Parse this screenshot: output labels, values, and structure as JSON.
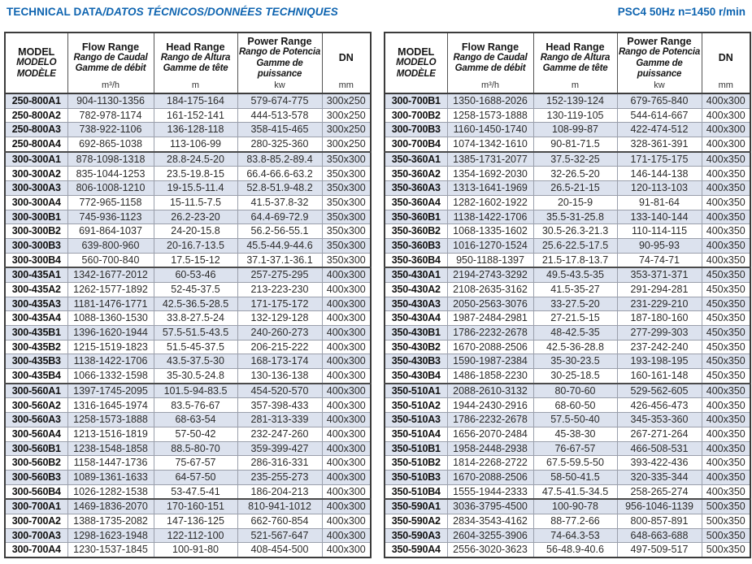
{
  "page": {
    "title_main": "TECHNICAL DATA",
    "title_translations": "/DATOS TÉCNICOS/DONNÉES TECHNIQUES",
    "spec_label": "PSC4 50Hz n=1450 r/min",
    "accent_color": "#0e64b0",
    "row_shade_color": "#dce2ee"
  },
  "header": {
    "model": {
      "en": "MODEL",
      "es": "MODELO",
      "fr": "MODÈLE"
    },
    "flow": {
      "en": "Flow Range",
      "es": "Rango de Caudal",
      "fr": "Gamme de débit",
      "unit": "m³/h"
    },
    "head": {
      "en": "Head Range",
      "es": "Rango de Altura",
      "fr": "Gamme de tête",
      "unit": "m"
    },
    "power": {
      "en": "Power Range",
      "es": "Rango de Potencia",
      "fr": "Gamme de puissance",
      "unit": "kw"
    },
    "dn": {
      "en": "DN",
      "unit": "mm"
    }
  },
  "tables": [
    {
      "rows": [
        [
          "250-800A1",
          "904-1130-1356",
          "184-175-164",
          "579-674-775",
          "300x250"
        ],
        [
          "250-800A2",
          "782-978-1174",
          "161-152-141",
          "444-513-578",
          "300x250"
        ],
        [
          "250-800A3",
          "738-922-1106",
          "136-128-118",
          "358-415-465",
          "300x250"
        ],
        [
          "250-800A4",
          "692-865-1038",
          "113-106-99",
          "280-325-360",
          "300x250"
        ],
        [
          "300-300A1",
          "878-1098-1318",
          "28.8-24.5-20",
          "83.8-85.2-89.4",
          "350x300"
        ],
        [
          "300-300A2",
          "835-1044-1253",
          "23.5-19.8-15",
          "66.4-66.6-63.2",
          "350x300"
        ],
        [
          "300-300A3",
          "806-1008-1210",
          "19-15.5-11.4",
          "52.8-51.9-48.2",
          "350x300"
        ],
        [
          "300-300A4",
          "772-965-1158",
          "15-11.5-7.5",
          "41.5-37.8-32",
          "350x300"
        ],
        [
          "300-300B1",
          "745-936-1123",
          "26.2-23-20",
          "64.4-69-72.9",
          "350x300"
        ],
        [
          "300-300B2",
          "691-864-1037",
          "24-20-15.8",
          "56.2-56-55.1",
          "350x300"
        ],
        [
          "300-300B3",
          "639-800-960",
          "20-16.7-13.5",
          "45.5-44.9-44.6",
          "350x300"
        ],
        [
          "300-300B4",
          "560-700-840",
          "17.5-15-12",
          "37.1-37.1-36.1",
          "350x300"
        ],
        [
          "300-435A1",
          "1342-1677-2012",
          "60-53-46",
          "257-275-295",
          "400x300"
        ],
        [
          "300-435A2",
          "1262-1577-1892",
          "52-45-37.5",
          "213-223-230",
          "400x300"
        ],
        [
          "300-435A3",
          "1181-1476-1771",
          "42.5-36.5-28.5",
          "171-175-172",
          "400x300"
        ],
        [
          "300-435A4",
          "1088-1360-1530",
          "33.8-27.5-24",
          "132-129-128",
          "400x300"
        ],
        [
          "300-435B1",
          "1396-1620-1944",
          "57.5-51.5-43.5",
          "240-260-273",
          "400x300"
        ],
        [
          "300-435B2",
          "1215-1519-1823",
          "51.5-45-37.5",
          "206-215-222",
          "400x300"
        ],
        [
          "300-435B3",
          "1138-1422-1706",
          "43.5-37.5-30",
          "168-173-174",
          "400x300"
        ],
        [
          "300-435B4",
          "1066-1332-1598",
          "35-30.5-24.8",
          "130-136-138",
          "400x300"
        ],
        [
          "300-560A1",
          "1397-1745-2095",
          "101.5-94-83.5",
          "454-520-570",
          "400x300"
        ],
        [
          "300-560A2",
          "1316-1645-1974",
          "83.5-76-67",
          "357-398-433",
          "400x300"
        ],
        [
          "300-560A3",
          "1258-1573-1888",
          "68-63-54",
          "281-313-339",
          "400x300"
        ],
        [
          "300-560A4",
          "1213-1516-1819",
          "57-50-42",
          "232-247-260",
          "400x300"
        ],
        [
          "300-560B1",
          "1238-1548-1858",
          "88.5-80-70",
          "359-399-427",
          "400x300"
        ],
        [
          "300-560B2",
          "1158-1447-1736",
          "75-67-57",
          "286-316-331",
          "400x300"
        ],
        [
          "300-560B3",
          "1089-1361-1633",
          "64-57-50",
          "235-255-273",
          "400x300"
        ],
        [
          "300-560B4",
          "1026-1282-1538",
          "53-47.5-41",
          "186-204-213",
          "400x300"
        ],
        [
          "300-700A1",
          "1469-1836-2070",
          "170-160-151",
          "810-941-1012",
          "400x300"
        ],
        [
          "300-700A2",
          "1388-1735-2082",
          "147-136-125",
          "662-760-854",
          "400x300"
        ],
        [
          "300-700A3",
          "1298-1623-1948",
          "122-112-100",
          "521-567-647",
          "400x300"
        ],
        [
          "300-700A4",
          "1230-1537-1845",
          "100-91-80",
          "408-454-500",
          "400x300"
        ]
      ]
    },
    {
      "rows": [
        [
          "300-700B1",
          "1350-1688-2026",
          "152-139-124",
          "679-765-840",
          "400x300"
        ],
        [
          "300-700B2",
          "1258-1573-1888",
          "130-119-105",
          "544-614-667",
          "400x300"
        ],
        [
          "300-700B3",
          "1160-1450-1740",
          "108-99-87",
          "422-474-512",
          "400x300"
        ],
        [
          "300-700B4",
          "1074-1342-1610",
          "90-81-71.5",
          "328-361-391",
          "400x300"
        ],
        [
          "350-360A1",
          "1385-1731-2077",
          "37.5-32-25",
          "171-175-175",
          "400x350"
        ],
        [
          "350-360A2",
          "1354-1692-2030",
          "32-26.5-20",
          "146-144-138",
          "400x350"
        ],
        [
          "350-360A3",
          "1313-1641-1969",
          "26.5-21-15",
          "120-113-103",
          "400x350"
        ],
        [
          "350-360A4",
          "1282-1602-1922",
          "20-15-9",
          "91-81-64",
          "400x350"
        ],
        [
          "350-360B1",
          "1138-1422-1706",
          "35.5-31-25.8",
          "133-140-144",
          "400x350"
        ],
        [
          "350-360B2",
          "1068-1335-1602",
          "30.5-26.3-21.3",
          "110-114-115",
          "400x350"
        ],
        [
          "350-360B3",
          "1016-1270-1524",
          "25.6-22.5-17.5",
          "90-95-93",
          "400x350"
        ],
        [
          "350-360B4",
          "950-1188-1397",
          "21.5-17.8-13.7",
          "74-74-71",
          "400x350"
        ],
        [
          "350-430A1",
          "2194-2743-3292",
          "49.5-43.5-35",
          "353-371-371",
          "450x350"
        ],
        [
          "350-430A2",
          "2108-2635-3162",
          "41.5-35-27",
          "291-294-281",
          "450x350"
        ],
        [
          "350-430A3",
          "2050-2563-3076",
          "33-27.5-20",
          "231-229-210",
          "450x350"
        ],
        [
          "350-430A4",
          "1987-2484-2981",
          "27-21.5-15",
          "187-180-160",
          "450x350"
        ],
        [
          "350-430B1",
          "1786-2232-2678",
          "48-42.5-35",
          "277-299-303",
          "450x350"
        ],
        [
          "350-430B2",
          "1670-2088-2506",
          "42.5-36-28.8",
          "237-242-240",
          "450x350"
        ],
        [
          "350-430B3",
          "1590-1987-2384",
          "35-30-23.5",
          "193-198-195",
          "450x350"
        ],
        [
          "350-430B4",
          "1486-1858-2230",
          "30-25-18.5",
          "160-161-148",
          "450x350"
        ],
        [
          "350-510A1",
          "2088-2610-3132",
          "80-70-60",
          "529-562-605",
          "400x350"
        ],
        [
          "350-510A2",
          "1944-2430-2916",
          "68-60-50",
          "426-456-473",
          "400x350"
        ],
        [
          "350-510A3",
          "1786-2232-2678",
          "57.5-50-40",
          "345-353-360",
          "400x350"
        ],
        [
          "350-510A4",
          "1656-2070-2484",
          "45-38-30",
          "267-271-264",
          "400x350"
        ],
        [
          "350-510B1",
          "1958-2448-2938",
          "76-67-57",
          "466-508-531",
          "400x350"
        ],
        [
          "350-510B2",
          "1814-2268-2722",
          "67.5-59.5-50",
          "393-422-436",
          "400x350"
        ],
        [
          "350-510B3",
          "1670-2088-2506",
          "58-50-41.5",
          "320-335-344",
          "400x350"
        ],
        [
          "350-510B4",
          "1555-1944-2333",
          "47.5-41.5-34.5",
          "258-265-274",
          "400x350"
        ],
        [
          "350-590A1",
          "3036-3795-4500",
          "100-90-78",
          "956-1046-1139",
          "500x350"
        ],
        [
          "350-590A2",
          "2834-3543-4162",
          "88-77.2-66",
          "800-857-891",
          "500x350"
        ],
        [
          "350-590A3",
          "2604-3255-3906",
          "74-64.3-53",
          "648-663-688",
          "500x350"
        ],
        [
          "350-590A4",
          "2556-3020-3623",
          "56-48.9-40.6",
          "497-509-517",
          "500x350"
        ]
      ]
    }
  ]
}
